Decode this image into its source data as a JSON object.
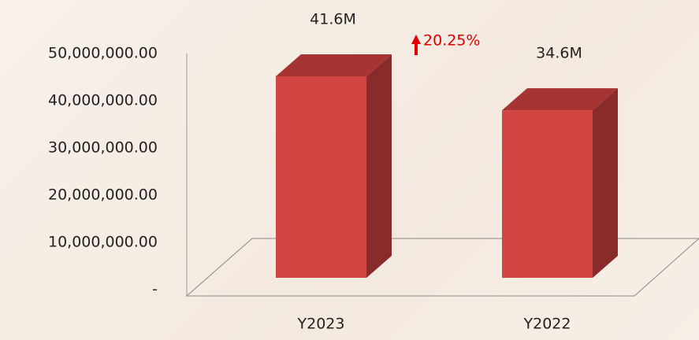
{
  "chart_data": {
    "type": "bar3d",
    "categories": [
      "Y2023",
      "Y2022"
    ],
    "values": [
      41600000,
      34600000
    ],
    "value_labels": [
      "41.6M",
      "34.6M"
    ],
    "annotation": "20.25%",
    "color": "#d34542",
    "ylim": [
      0,
      50000000
    ],
    "yticks": [
      {
        "value": 0,
        "label": "-"
      },
      {
        "value": 10000000,
        "label": "10,000,000.00"
      },
      {
        "value": 20000000,
        "label": "20,000,000.00"
      },
      {
        "value": 30000000,
        "label": "30,000,000.00"
      },
      {
        "value": 40000000,
        "label": "40,000,000.00"
      },
      {
        "value": 50000000,
        "label": "50,000,000.00"
      }
    ]
  }
}
